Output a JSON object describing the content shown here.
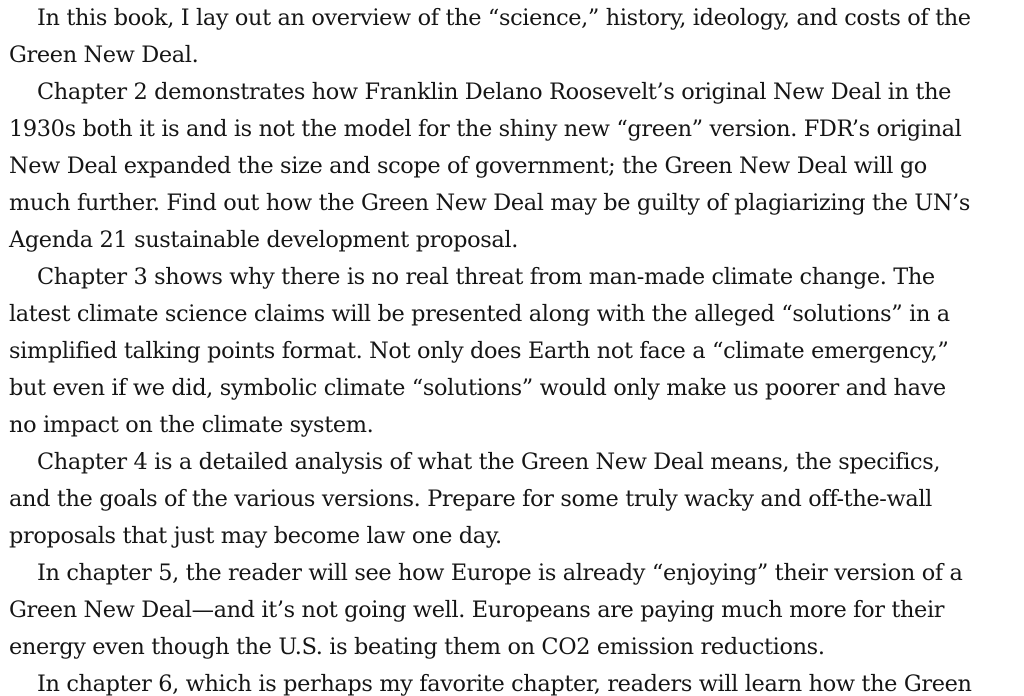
{
  "document": {
    "lines": [
      "In this book, I lay out an overview of the “science,” history, ideology, and costs of the",
      "Green New Deal.",
      "Chapter 2 demonstrates how Franklin Delano Roosevelt’s original New Deal in the",
      "1930s both it is and is not the model for the shiny new “green” version. FDR’s original",
      "New Deal expanded the size and scope of government; the Green New Deal will go",
      "much further. Find out how the Green New Deal may be guilty of plagiarizing the UN’s",
      "Agenda 21 sustainable development proposal.",
      "Chapter 3 shows why there is no real threat from man-made climate change. The",
      "latest climate science claims will be presented along with the alleged “solutions” in a",
      "simplified talking points format. Not only does Earth not face a “climate emergency,”",
      "but even if we did, symbolic climate “solutions” would only make us poorer and have",
      "no impact on the climate system.",
      "Chapter 4 is a detailed analysis of what the Green New Deal means, the specifics,",
      "and the goals of the various versions. Prepare for some truly wacky and off-the-wall",
      "proposals that just may become law one day.",
      "In chapter 5, the reader will see how Europe is already “enjoying” their version of a",
      "Green New Deal—and it’s not going well. Europeans are paying much more for their",
      "energy even though the U.S. is beating them on CO2 emission reductions.",
      "In chapter 6, which is perhaps my favorite chapter, readers will learn how the Green"
    ]
  }
}
